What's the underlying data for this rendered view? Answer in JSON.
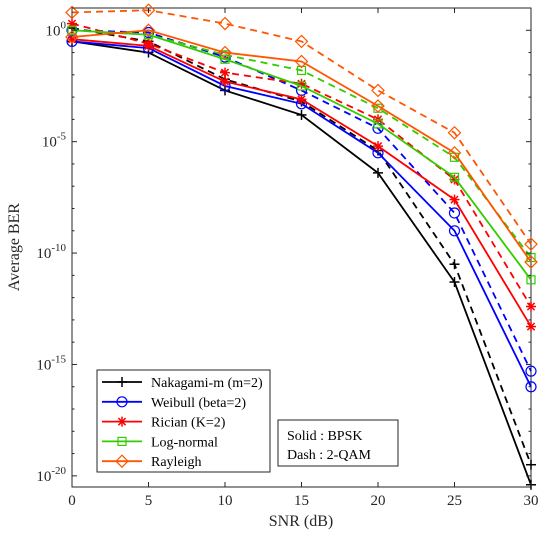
{
  "chart_data": {
    "type": "line",
    "xlabel": "SNR (dB)",
    "ylabel": "Average BER",
    "xlim": [
      0,
      30
    ],
    "ylim_log10": [
      -20.5,
      1
    ],
    "yscale": "log",
    "grid": false,
    "x": [
      0,
      5,
      10,
      15,
      20,
      25,
      30
    ],
    "x_tick_labels": [
      "0",
      "5",
      "10",
      "15",
      "20",
      "25",
      "30"
    ],
    "y_ticks": [
      {
        "exp": 0,
        "base": "10",
        "sup": "0"
      },
      {
        "exp": -5,
        "base": "10",
        "sup": "-5"
      },
      {
        "exp": -10,
        "base": "10",
        "sup": "-10"
      },
      {
        "exp": -15,
        "base": "10",
        "sup": "-15"
      },
      {
        "exp": -20,
        "base": "10",
        "sup": "-20"
      }
    ],
    "legend_position": "bottom-left",
    "series": [
      {
        "name": "Nakagami-m (m=2)",
        "color": "#000000",
        "marker": "plus",
        "bpsk_log10": [
          -0.5,
          -1.0,
          -2.7,
          -3.8,
          -6.4,
          -11.3,
          -20.4
        ],
        "qam_log10": [
          0.1,
          -0.5,
          -2.2,
          -3.2,
          -5.4,
          -10.5,
          -19.5
        ]
      },
      {
        "name": "Weibull (beta=2)",
        "color": "#0000ff",
        "marker": "circle",
        "bpsk_log10": [
          -0.5,
          -0.8,
          -2.5,
          -3.3,
          -5.5,
          -9.0,
          -16.0
        ],
        "qam_log10": [
          0.0,
          -0.1,
          -1.2,
          -2.7,
          -4.4,
          -8.2,
          -15.3
        ]
      },
      {
        "name": "Rician (K=2)",
        "color": "#ff0000",
        "marker": "asterisk",
        "bpsk_log10": [
          -0.4,
          -0.7,
          -2.3,
          -3.1,
          -5.2,
          -7.6,
          -13.3
        ],
        "qam_log10": [
          0.3,
          -0.6,
          -1.9,
          -2.4,
          -4.0,
          -6.7,
          -12.4
        ]
      },
      {
        "name": "Log-normal",
        "color": "#33cc00",
        "marker": "square",
        "bpsk_log10": [
          -0.0,
          -0.2,
          -1.3,
          -2.5,
          -4.2,
          -6.6,
          -11.2
        ],
        "qam_log10": [
          0.0,
          -0.2,
          -1.1,
          -1.8,
          -3.5,
          -5.7,
          -10.2
        ]
      },
      {
        "name": "Rayleigh",
        "color": "#ff5500",
        "marker": "diamond",
        "bpsk_log10": [
          -0.3,
          0.0,
          -1.0,
          -1.4,
          -3.4,
          -5.5,
          -10.4
        ],
        "qam_log10": [
          0.8,
          0.9,
          0.3,
          -0.5,
          -2.7,
          -4.6,
          -9.6
        ]
      }
    ],
    "annotation": {
      "line1": "Solid : BPSK",
      "line2": "Dash : 2-QAM"
    }
  }
}
